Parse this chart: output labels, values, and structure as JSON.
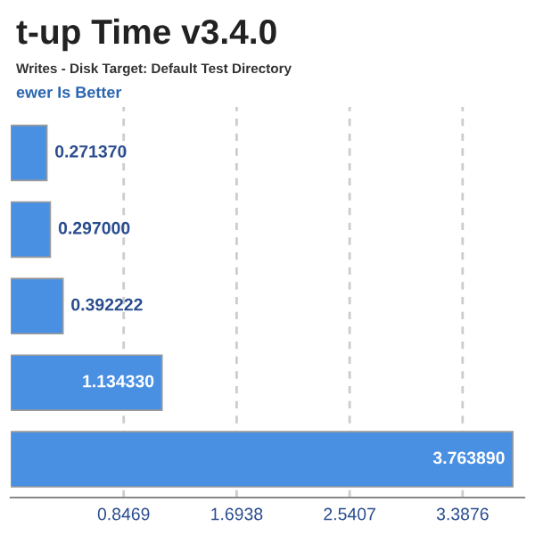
{
  "chart_data": {
    "type": "bar",
    "orientation": "horizontal",
    "title": "t-up Time v3.4.0",
    "subtitle": "Writes - Disk Target: Default Test Directory",
    "annotations": [
      "ewer Is Better"
    ],
    "categories": [
      null,
      null,
      null,
      null,
      null
    ],
    "values": [
      0.27137,
      0.297,
      0.392222,
      1.13433,
      3.76389
    ],
    "value_labels": [
      "0.271370",
      "0.297000",
      "0.392222",
      "1.134330",
      "3.763890"
    ],
    "color": "#4a90e2",
    "xlim": [
      0,
      3.85
    ],
    "xticks": [
      0.8469,
      1.6938,
      2.5407,
      3.3876
    ],
    "grid": "x"
  }
}
